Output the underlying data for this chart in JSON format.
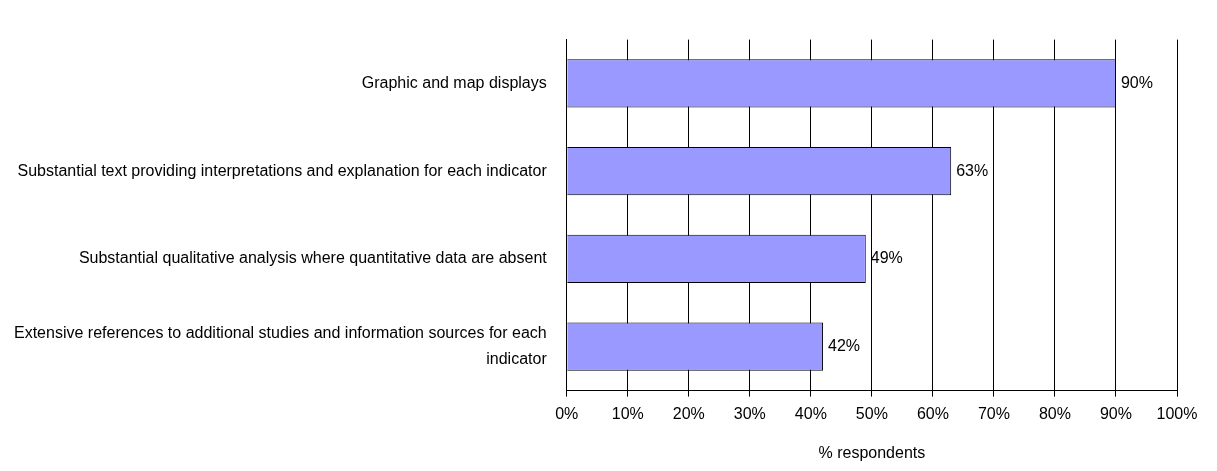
{
  "chart_data": {
    "type": "bar",
    "orientation": "horizontal",
    "categories": [
      "Graphic and map displays",
      "Substantial text providing interpretations and explanation for each indicator",
      "Substantial qualitative analysis where quantitative data are absent",
      "Extensive references to additional studies and information sources for each indicator"
    ],
    "values": [
      90,
      63,
      49,
      42
    ],
    "value_labels": [
      "90%",
      "63%",
      "49%",
      "42%"
    ],
    "color": "#9999ff",
    "xlabel": "% respondents",
    "xlim": [
      0,
      100
    ],
    "xticks": [
      {
        "value": 0,
        "label": "0%"
      },
      {
        "value": 10,
        "label": "10%"
      },
      {
        "value": 20,
        "label": "20%"
      },
      {
        "value": 30,
        "label": "30%"
      },
      {
        "value": 40,
        "label": "40%"
      },
      {
        "value": 50,
        "label": "50%"
      },
      {
        "value": 60,
        "label": "60%"
      },
      {
        "value": 70,
        "label": "70%"
      },
      {
        "value": 80,
        "label": "80%"
      },
      {
        "value": 90,
        "label": "90%"
      },
      {
        "value": 100,
        "label": "100%"
      }
    ],
    "grid": "x",
    "legend": false
  }
}
